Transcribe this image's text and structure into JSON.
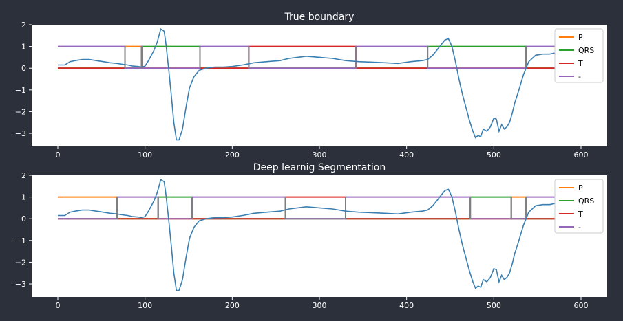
{
  "colors": {
    "figure_bg": "#2b303b",
    "axes_bg": "#ffffff",
    "text": "#ffffff",
    "signal": "#3a7fb1",
    "P": "#ff7f0e",
    "QRS": "#2ca02c",
    "T": "#d62728",
    "-": "#9467bd",
    "overlap": "#7f7f7f"
  },
  "chart_data": [
    {
      "type": "line",
      "title": "True boundary",
      "xlim": [
        -30,
        630
      ],
      "ylim": [
        -3.6,
        2.0
      ],
      "xticks": [
        0,
        100,
        200,
        300,
        400,
        500,
        600
      ],
      "yticks": [
        2,
        1,
        0,
        -1,
        -2,
        -3
      ],
      "legend_position": "top-right",
      "legend": [
        "P",
        "QRS",
        "T",
        "-"
      ],
      "segments": [
        {
          "label": "-",
          "start": 0,
          "end": 77
        },
        {
          "label": "P",
          "start": 77,
          "end": 96
        },
        {
          "label": "-",
          "start": 96,
          "end": 97
        },
        {
          "label": "QRS",
          "start": 97,
          "end": 163
        },
        {
          "label": "-",
          "start": 163,
          "end": 219
        },
        {
          "label": "T",
          "start": 219,
          "end": 342
        },
        {
          "label": "-",
          "start": 342,
          "end": 424
        },
        {
          "label": "QRS",
          "start": 424,
          "end": 537
        },
        {
          "label": "-",
          "start": 537,
          "end": 600
        }
      ],
      "signal": {
        "x": [
          0,
          8,
          14,
          20,
          28,
          36,
          44,
          52,
          60,
          68,
          74,
          80,
          86,
          92,
          96,
          100,
          104,
          110,
          114,
          118,
          122,
          124,
          127,
          130,
          133,
          136,
          139,
          143,
          147,
          151,
          156,
          162,
          170,
          180,
          190,
          200,
          212,
          225,
          240,
          255,
          265,
          275,
          285,
          300,
          315,
          330,
          345,
          360,
          375,
          390,
          405,
          418,
          424,
          430,
          436,
          440,
          444,
          448,
          452,
          456,
          460,
          464,
          468,
          472,
          476,
          479,
          482,
          485,
          488,
          492,
          496,
          500,
          503,
          506,
          509,
          512,
          515,
          518,
          521,
          524,
          528,
          534,
          540,
          548,
          556,
          564,
          570,
          578,
          588,
          600
        ],
        "y": [
          0.15,
          0.15,
          0.3,
          0.35,
          0.4,
          0.4,
          0.35,
          0.3,
          0.25,
          0.22,
          0.18,
          0.15,
          0.1,
          0.08,
          0.05,
          0.1,
          0.35,
          0.8,
          1.2,
          1.8,
          1.7,
          1.1,
          0.0,
          -1.2,
          -2.5,
          -3.3,
          -3.3,
          -2.8,
          -1.8,
          -0.9,
          -0.4,
          -0.1,
          0.0,
          0.05,
          0.05,
          0.08,
          0.15,
          0.25,
          0.3,
          0.35,
          0.45,
          0.5,
          0.55,
          0.5,
          0.45,
          0.35,
          0.3,
          0.28,
          0.25,
          0.22,
          0.3,
          0.35,
          0.4,
          0.6,
          0.9,
          1.1,
          1.3,
          1.35,
          1.0,
          0.3,
          -0.5,
          -1.2,
          -1.8,
          -2.4,
          -2.9,
          -3.2,
          -3.1,
          -3.15,
          -2.8,
          -2.9,
          -2.7,
          -2.3,
          -2.35,
          -2.9,
          -2.6,
          -2.8,
          -2.7,
          -2.5,
          -2.1,
          -1.6,
          -1.1,
          -0.3,
          0.3,
          0.6,
          0.65,
          0.65,
          0.7,
          0.75,
          0.8,
          0.85
        ]
      }
    },
    {
      "type": "line",
      "title": "Deep learnig Segmentation",
      "xlim": [
        -30,
        630
      ],
      "ylim": [
        -3.6,
        2.0
      ],
      "xticks": [
        0,
        100,
        200,
        300,
        400,
        500,
        600
      ],
      "yticks": [
        2,
        1,
        0,
        -1,
        -2,
        -3
      ],
      "legend_position": "top-right",
      "legend": [
        "P",
        "QRS",
        "T",
        "-"
      ],
      "segments": [
        {
          "label": "P",
          "start": 0,
          "end": 68
        },
        {
          "label": "-",
          "start": 68,
          "end": 115
        },
        {
          "label": "QRS",
          "start": 115,
          "end": 154
        },
        {
          "label": "-",
          "start": 154,
          "end": 261
        },
        {
          "label": "T",
          "start": 261,
          "end": 330
        },
        {
          "label": "-",
          "start": 330,
          "end": 473
        },
        {
          "label": "QRS",
          "start": 473,
          "end": 520
        },
        {
          "label": "P",
          "start": 520,
          "end": 537
        },
        {
          "label": "-",
          "start": 537,
          "end": 600
        }
      ],
      "signal": {
        "x": [
          0,
          8,
          14,
          20,
          28,
          36,
          44,
          52,
          60,
          68,
          74,
          80,
          86,
          92,
          96,
          100,
          104,
          110,
          114,
          118,
          122,
          124,
          127,
          130,
          133,
          136,
          139,
          143,
          147,
          151,
          156,
          162,
          170,
          180,
          190,
          200,
          212,
          225,
          240,
          255,
          265,
          275,
          285,
          300,
          315,
          330,
          345,
          360,
          375,
          390,
          405,
          418,
          424,
          430,
          436,
          440,
          444,
          448,
          452,
          456,
          460,
          464,
          468,
          472,
          476,
          479,
          482,
          485,
          488,
          492,
          496,
          500,
          503,
          506,
          509,
          512,
          515,
          518,
          521,
          524,
          528,
          534,
          540,
          548,
          556,
          564,
          570,
          578,
          588,
          600
        ],
        "y": [
          0.15,
          0.15,
          0.3,
          0.35,
          0.4,
          0.4,
          0.35,
          0.3,
          0.25,
          0.22,
          0.18,
          0.15,
          0.1,
          0.08,
          0.05,
          0.1,
          0.35,
          0.8,
          1.2,
          1.8,
          1.7,
          1.1,
          0.0,
          -1.2,
          -2.5,
          -3.3,
          -3.3,
          -2.8,
          -1.8,
          -0.9,
          -0.4,
          -0.1,
          0.0,
          0.05,
          0.05,
          0.08,
          0.15,
          0.25,
          0.3,
          0.35,
          0.45,
          0.5,
          0.55,
          0.5,
          0.45,
          0.35,
          0.3,
          0.28,
          0.25,
          0.22,
          0.3,
          0.35,
          0.4,
          0.6,
          0.9,
          1.1,
          1.3,
          1.35,
          1.0,
          0.3,
          -0.5,
          -1.2,
          -1.8,
          -2.4,
          -2.9,
          -3.2,
          -3.1,
          -3.15,
          -2.8,
          -2.9,
          -2.7,
          -2.3,
          -2.35,
          -2.9,
          -2.6,
          -2.8,
          -2.7,
          -2.5,
          -2.1,
          -1.6,
          -1.1,
          -0.3,
          0.3,
          0.6,
          0.65,
          0.65,
          0.7,
          0.75,
          0.8,
          0.85
        ]
      }
    }
  ]
}
